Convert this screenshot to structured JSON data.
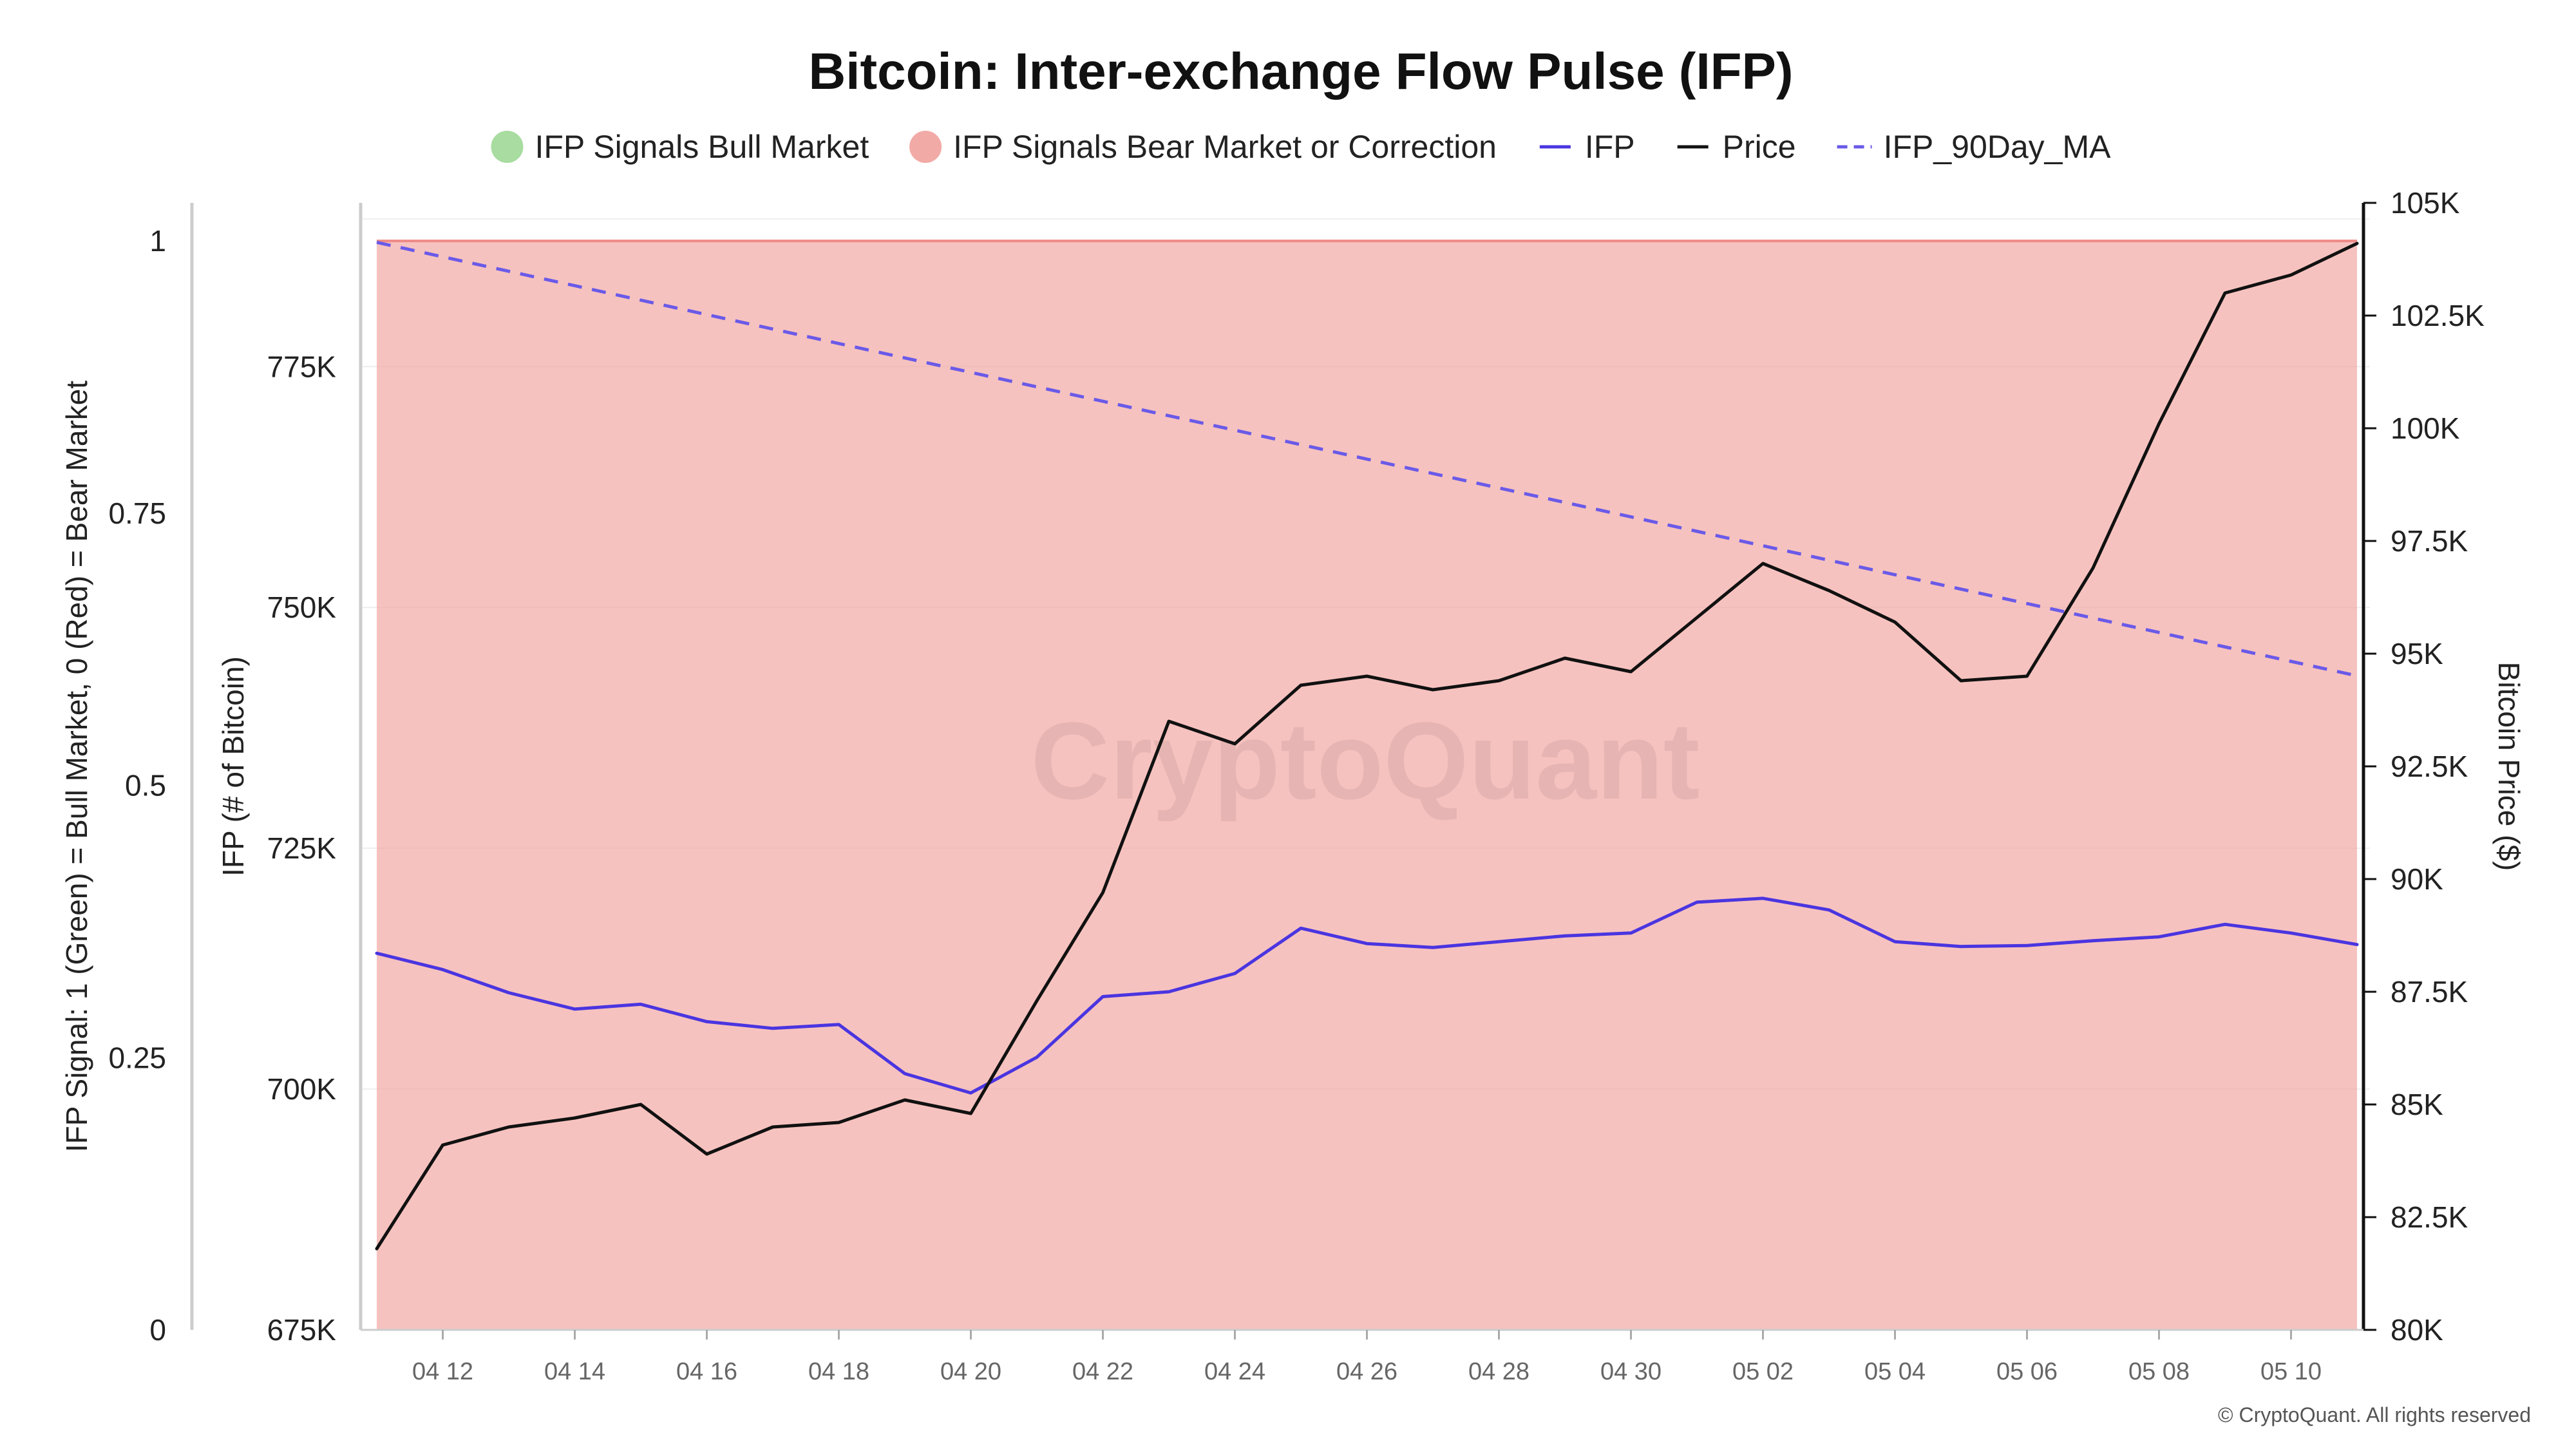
{
  "chart_data": {
    "type": "line",
    "title": "Bitcoin: Inter-exchange Flow Pulse (IFP)",
    "legend": [
      {
        "label": "IFP Signals Bull Market",
        "marker": "circle",
        "color": "#a8dca0"
      },
      {
        "label": "IFP Signals Bear Market or Correction",
        "marker": "circle",
        "color": "#f2aaa6"
      },
      {
        "label": "IFP",
        "marker": "line",
        "color": "#4a35e0"
      },
      {
        "label": "Price",
        "marker": "line",
        "color": "#111111"
      },
      {
        "label": "IFP_90Day_MA",
        "marker": "dashed",
        "color": "#6a5ae8"
      }
    ],
    "legend_position": "top-center",
    "x_tick_labels": [
      "04 12",
      "04 14",
      "04 16",
      "04 18",
      "04 20",
      "04 22",
      "04 24",
      "04 26",
      "04 28",
      "04 30",
      "05 02",
      "05 04",
      "05 06",
      "05 08",
      "05 10"
    ],
    "x": [
      "04 11",
      "04 12",
      "04 13",
      "04 14",
      "04 15",
      "04 16",
      "04 17",
      "04 18",
      "04 19",
      "04 20",
      "04 21",
      "04 22",
      "04 23",
      "04 24",
      "04 25",
      "04 26",
      "04 27",
      "04 28",
      "04 29",
      "04 30",
      "05 01",
      "05 02",
      "05 03",
      "05 04",
      "05 05",
      "05 06",
      "05 07",
      "05 08",
      "05 09",
      "05 10",
      "05 11"
    ],
    "axes": {
      "signal": {
        "label": "IFP Signal: 1 (Green) = Bull Market, 0 (Red) = Bear Market",
        "ticks": [
          "0",
          "0.25",
          "0.5",
          "0.75",
          "1"
        ],
        "range": [
          0,
          1.035
        ]
      },
      "ifp": {
        "label": "IFP (# of Bitcoin)",
        "ticks": [
          "675K",
          "700K",
          "725K",
          "750K",
          "775K"
        ],
        "range": [
          675000,
          792000
        ]
      },
      "price": {
        "label": "Bitcoin Price ($)",
        "ticks": [
          "80K",
          "82.5K",
          "85K",
          "87.5K",
          "90K",
          "92.5K",
          "95K",
          "97.5K",
          "100K",
          "102.5K",
          "105K"
        ],
        "range": [
          80000,
          105000
        ]
      }
    },
    "series": [
      {
        "name": "IFP Signals Bear Market or Correction",
        "axis": "signal",
        "kind": "area",
        "color": "#f2aaa6",
        "values": [
          1,
          1,
          1,
          1,
          1,
          1,
          1,
          1,
          1,
          1,
          1,
          1,
          1,
          1,
          1,
          1,
          1,
          1,
          1,
          1,
          1,
          1,
          1,
          1,
          1,
          1,
          1,
          1,
          1,
          1,
          1
        ]
      },
      {
        "name": "IFP",
        "axis": "ifp",
        "kind": "line",
        "color": "#4a35e0",
        "values": [
          714100,
          712400,
          710000,
          708300,
          708800,
          707000,
          706300,
          706700,
          701600,
          699600,
          703300,
          709600,
          710100,
          712000,
          716700,
          715100,
          714700,
          715300,
          715900,
          716200,
          719400,
          719800,
          718600,
          715300,
          714800,
          714900,
          715400,
          715800,
          717100,
          716200,
          715000
        ]
      },
      {
        "name": "Price",
        "axis": "price",
        "kind": "line",
        "color": "#111111",
        "values": [
          81800,
          84100,
          84500,
          84700,
          85000,
          83900,
          84500,
          84600,
          85100,
          84800,
          87300,
          89700,
          93500,
          93000,
          94300,
          94500,
          94200,
          94400,
          94900,
          94600,
          95800,
          97000,
          96400,
          95700,
          94400,
          94500,
          96900,
          100100,
          103000,
          103400,
          104100
        ]
      },
      {
        "name": "IFP_90Day_MA",
        "axis": "ifp",
        "kind": "dashed",
        "color": "#6a5ae8",
        "values": [
          787900,
          786400,
          784900,
          783400,
          781900,
          780400,
          778900,
          777400,
          775900,
          774400,
          772900,
          771400,
          769900,
          768400,
          766900,
          765400,
          763900,
          762400,
          760900,
          759400,
          757900,
          756400,
          754900,
          753400,
          751900,
          750400,
          748900,
          747400,
          745900,
          744400,
          742900
        ]
      }
    ],
    "grid": true,
    "watermark": "CryptoQuant",
    "copyright": "© CryptoQuant. All rights reserved"
  }
}
